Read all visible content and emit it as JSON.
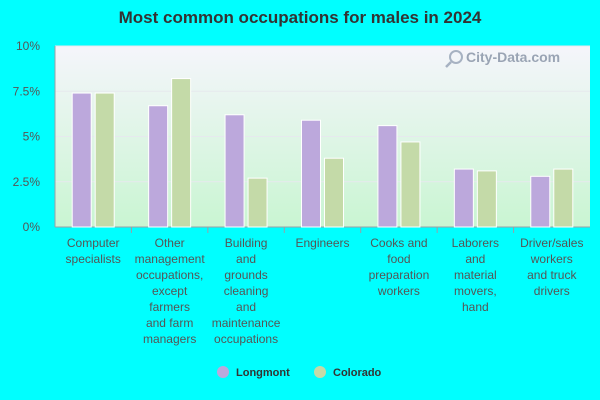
{
  "colors": {
    "background": "#00FFFF",
    "series_longmont": "#BCA8DC",
    "series_colorado": "#C4DAA8",
    "plot_gradient_top": "#F5F5FB",
    "plot_gradient_bottom": "#C9F5D2"
  },
  "watermark": {
    "text": "City-Data.com",
    "icon": "magnifier-icon"
  },
  "chart_data": {
    "type": "bar",
    "title": "Most common occupations for males in 2024",
    "xlabel": "",
    "ylabel": "",
    "ylim": [
      0,
      10
    ],
    "y_ticks": [
      0,
      2.5,
      5,
      7.5,
      10
    ],
    "y_tick_labels": [
      "0%",
      "2.5%",
      "5%",
      "7.5%",
      "10%"
    ],
    "grid": true,
    "legend_position": "bottom-center",
    "categories": [
      [
        "Computer",
        "specialists"
      ],
      [
        "Other",
        "management",
        "occupations,",
        "except",
        "farmers",
        "and farm",
        "managers"
      ],
      [
        "Building",
        "and",
        "grounds",
        "cleaning",
        "and",
        "maintenance",
        "occupations"
      ],
      [
        "Engineers"
      ],
      [
        "Cooks and",
        "food",
        "preparation",
        "workers"
      ],
      [
        "Laborers",
        "and",
        "material",
        "movers,",
        "hand"
      ],
      [
        "Driver/sales",
        "workers",
        "and truck",
        "drivers"
      ]
    ],
    "series": [
      {
        "name": "Longmont",
        "values": [
          7.4,
          6.7,
          6.2,
          5.9,
          5.6,
          3.2,
          2.8
        ]
      },
      {
        "name": "Colorado",
        "values": [
          7.4,
          8.2,
          2.7,
          3.8,
          4.7,
          3.1,
          3.2
        ]
      }
    ]
  }
}
